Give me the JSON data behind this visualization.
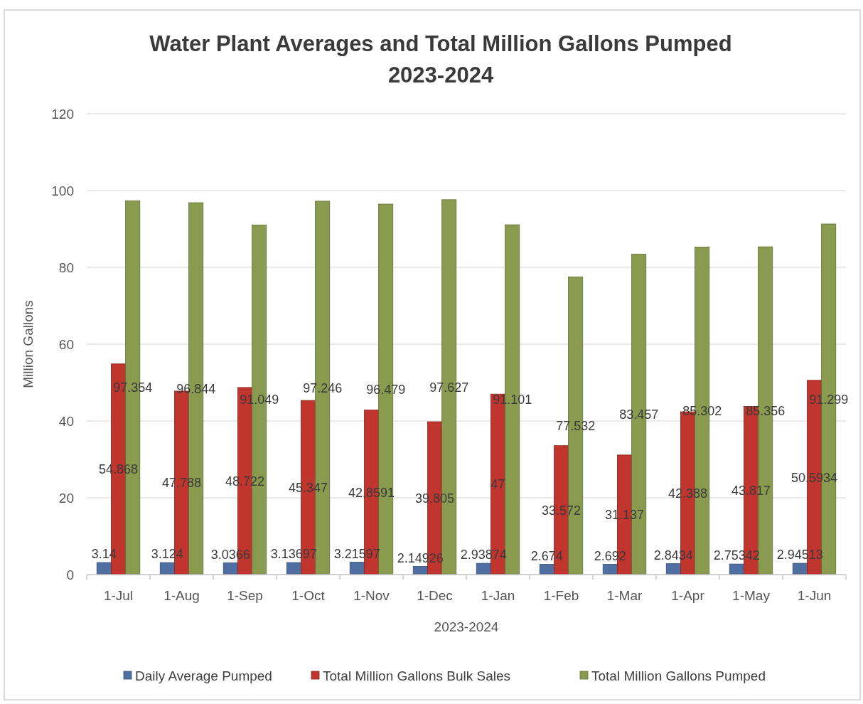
{
  "chart_data": {
    "type": "bar",
    "title": "Water Plant Averages and Total Million Gallons Pumped\n2023-2024",
    "xlabel": "2023-2024",
    "ylabel": "Million Gallons",
    "categories": [
      "1-Jul",
      "1-Aug",
      "1-Sep",
      "1-Oct",
      "1-Nov",
      "1-Dec",
      "1-Jan",
      "1-Feb",
      "1-Mar",
      "1-Apr",
      "1-May",
      "1-Jun"
    ],
    "series": [
      {
        "name": "Daily Average Pumped",
        "color": "#4f6fa3",
        "values": [
          3.14,
          3.124,
          3.0366,
          3.13697,
          3.21597,
          2.14926,
          2.93874,
          2.674,
          2.692,
          2.8434,
          2.75342,
          2.94513
        ]
      },
      {
        "name": "Total Million Gallons Bulk Sales",
        "color": "#c0352d",
        "values": [
          54.868,
          47.788,
          48.722,
          45.347,
          42.8591,
          39.805,
          47,
          33.572,
          31.137,
          42.388,
          43.817,
          50.5934
        ]
      },
      {
        "name": "Total Million Gallons Pumped",
        "color": "#8a9b4f",
        "values": [
          97.354,
          96.844,
          91.049,
          97.246,
          96.479,
          97.627,
          91.101,
          77.532,
          83.457,
          85.302,
          85.356,
          91.299
        ]
      }
    ],
    "ylim": [
      0,
      120
    ],
    "yticks": [
      0,
      20,
      40,
      60,
      80,
      100,
      120
    ],
    "grid": "y",
    "legend": "bottom",
    "data_labels": true
  }
}
